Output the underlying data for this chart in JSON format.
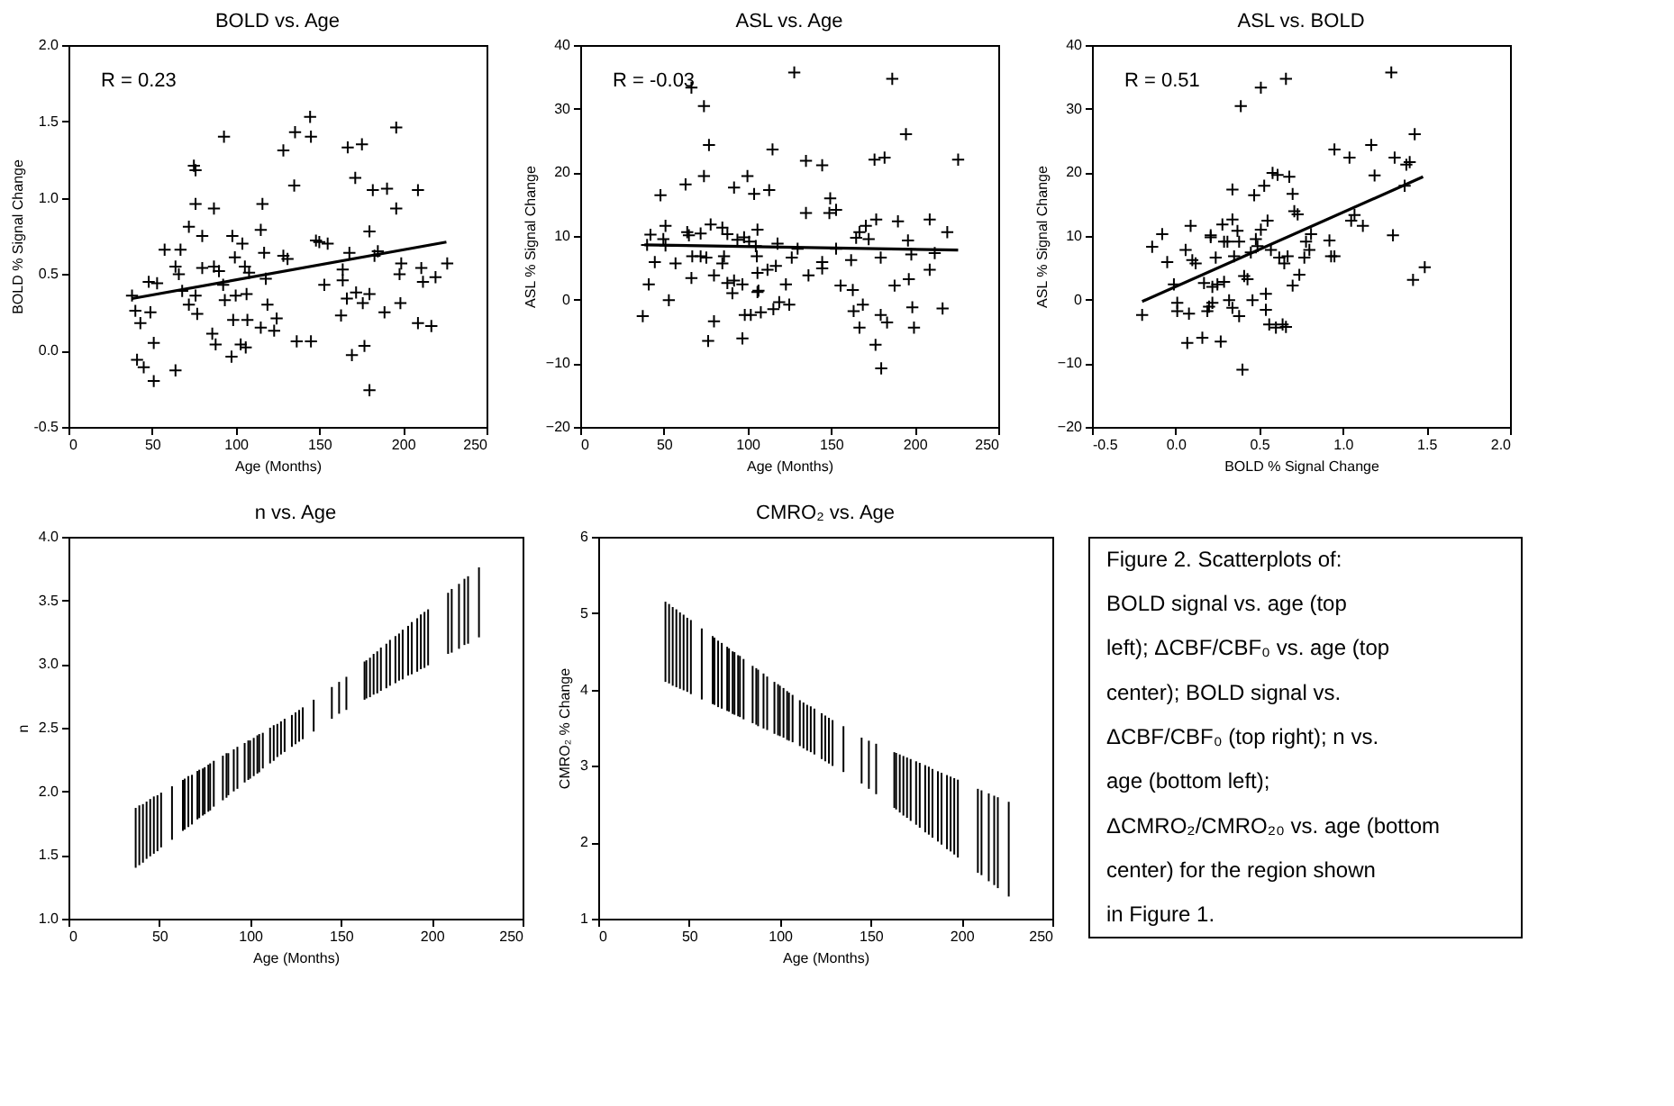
{
  "chart_data": [
    {
      "type": "scatter",
      "title": "BOLD vs. Age",
      "xlabel": "Age (Months)",
      "ylabel": "BOLD % Signal Change",
      "annotations": [
        "R = 0.23"
      ],
      "grid": false,
      "xlim": [
        0,
        250
      ],
      "xticks": [
        0,
        50,
        100,
        150,
        200,
        250
      ],
      "ylim": [
        -0.5,
        2.0
      ],
      "yticks": [
        {
          "value": -0.5,
          "label": "-0.5"
        },
        {
          "value": 0,
          "label": "0.0"
        },
        {
          "value": 0.5,
          "label": "0.5"
        },
        {
          "value": 1,
          "label": "1.0"
        },
        {
          "value": 1.5,
          "label": "1.5"
        },
        {
          "value": 2,
          "label": "2.0"
        }
      ],
      "series": [
        {
          "type": "scatter",
          "marker": "cross",
          "color": "#000000",
          "x": [
            38,
            40,
            41,
            43,
            45,
            48,
            49,
            51,
            51,
            53,
            57.5,
            64,
            64,
            66,
            67,
            68,
            72,
            72,
            75,
            76,
            76,
            76,
            77,
            80,
            80,
            86,
            87,
            87,
            88,
            90,
            93,
            92.5,
            93.5,
            98,
            97.5,
            98.5,
            99.5,
            100,
            103,
            104,
            105.5,
            106,
            106.5,
            107,
            108,
            115,
            116,
            117,
            118,
            119,
            115,
            123,
            124.5,
            128.5,
            128.5,
            131,
            135,
            135.5,
            136.5,
            144.5,
            145,
            145,
            148,
            150,
            153,
            155,
            163,
            164,
            164,
            166.5,
            167,
            168,
            169.5,
            171.5,
            172,
            175.5,
            176,
            177,
            180,
            180,
            180,
            182,
            183,
            185,
            189,
            190.5,
            196,
            196,
            198,
            198.5,
            199,
            209,
            209,
            211,
            212,
            217,
            219.5,
            226.5
          ],
          "values": [
            0.36,
            0.26,
            -0.06,
            0.18,
            -0.11,
            0.45,
            0.25,
            0.05,
            -0.2,
            0.44,
            0.66,
            0.55,
            -0.13,
            0.5,
            0.66,
            0.39,
            0.81,
            0.3,
            1.21,
            1.18,
            0.96,
            0.36,
            0.24,
            0.75,
            0.54,
            0.11,
            0.93,
            0.55,
            0.04,
            0.52,
            1.4,
            0.43,
            0.33,
            0.75,
            -0.04,
            0.2,
            0.61,
            0.36,
            0.04,
            0.7,
            0.55,
            0.02,
            0.37,
            0.2,
            0.51,
            0.79,
            0.96,
            0.64,
            0.47,
            0.3,
            0.15,
            0.13,
            0.21,
            1.31,
            0.62,
            0.6,
            1.08,
            1.43,
            0.06,
            1.53,
            1.4,
            0.06,
            0.72,
            0.71,
            0.43,
            0.7,
            0.23,
            0.53,
            0.46,
            0.34,
            1.33,
            0.64,
            -0.03,
            1.13,
            0.38,
            1.35,
            0.31,
            0.03,
            0.78,
            -0.26,
            0.37,
            1.05,
            0.62,
            0.65,
            0.25,
            1.06,
            0.93,
            1.46,
            0.5,
            0.31,
            0.57,
            1.05,
            0.18,
            0.54,
            0.45,
            0.16,
            0.48,
            0.57
          ]
        },
        {
          "type": "line",
          "line_style": "solid",
          "color": "#000000",
          "x": [
            38,
            226
          ],
          "values": [
            0.34,
            0.71
          ]
        }
      ]
    },
    {
      "type": "scatter",
      "title": "ASL vs. Age",
      "xlabel": "Age (Months)",
      "ylabel": "ASL % Signal Change",
      "annotations": [
        "R = -0.03"
      ],
      "grid": false,
      "xlim": [
        0,
        250
      ],
      "xticks": [
        0,
        50,
        100,
        150,
        200,
        250
      ],
      "ylim": [
        -20,
        40
      ],
      "yticks": [
        -20,
        -10,
        0,
        10,
        20,
        30,
        40
      ],
      "series": [
        {
          "type": "scatter",
          "marker": "cross",
          "color": "#000000",
          "x": [
            37.4,
            40,
            41,
            42,
            44.6,
            48,
            49.7,
            51,
            51,
            53,
            57,
            63,
            64,
            65,
            66.5,
            66.5,
            67,
            72,
            72,
            74,
            74,
            75.4,
            77,
            76.5,
            78,
            80,
            80,
            85,
            85,
            86,
            88,
            88,
            91,
            92,
            92,
            94,
            97,
            97,
            98,
            98.4,
            100,
            101,
            102,
            104,
            105,
            105.6,
            106,
            106,
            106,
            106.6,
            108,
            112,
            113,
            115,
            115.5,
            117,
            118,
            119,
            123,
            125,
            126.5,
            128,
            130,
            135,
            135,
            136.5,
            144.7,
            144.7,
            144.7,
            149.5,
            149,
            153,
            153,
            155.7,
            162,
            163,
            163.5,
            165,
            167,
            167,
            169,
            170.8,
            172.5,
            176,
            176.6,
            177,
            179.7,
            179.7,
            180,
            182,
            183.5,
            186.6,
            188,
            190,
            194.8,
            196,
            196.5,
            198,
            198.6,
            199.6,
            209,
            209,
            212,
            216.7,
            219.5,
            226
          ],
          "values": [
            -2.6,
            8.6,
            2.4,
            10.2,
            5.9,
            16.4,
            9.5,
            11.6,
            8.5,
            -0.1,
            5.7,
            18.1,
            10.6,
            10.1,
            3.4,
            33.3,
            6.8,
            10.4,
            6.8,
            30.4,
            19.4,
            6.6,
            24.3,
            -6.5,
            11.8,
            3.8,
            -3.4,
            11.3,
            5.7,
            6.8,
            10.3,
            2.6,
            1.0,
            17.6,
            3.0,
            9.4,
            2.4,
            -6.1,
            9.8,
            -2.4,
            19.4,
            9.1,
            -2.4,
            16.6,
            8.4,
            6.8,
            11.0,
            4.2,
            1.2,
            1.4,
            -2.0,
            4.7,
            17.2,
            23.6,
            -1.5,
            5.3,
            8.8,
            -0.4,
            2.4,
            -0.8,
            6.6,
            35.7,
            8.0,
            21.8,
            13.6,
            3.8,
            4.9,
            5.9,
            21.1,
            15.9,
            13.6,
            14.1,
            8.0,
            2.2,
            6.2,
            1.5,
            -1.8,
            9.7,
            10.6,
            -4.4,
            -0.8,
            11.6,
            9.5,
            22.0,
            -7.1,
            12.6,
            6.6,
            -2.4,
            -10.8,
            22.3,
            -3.6,
            34.7,
            2.2,
            12.3,
            26.0,
            9.3,
            3.2,
            7.1,
            -1.2,
            -4.4,
            12.6,
            4.7,
            7.3,
            -1.4,
            10.6,
            22
          ]
        },
        {
          "type": "line",
          "line_style": "solid",
          "color": "#000000",
          "x": [
            38.4,
            226
          ],
          "values": [
            8.6,
            7.8
          ]
        }
      ]
    },
    {
      "type": "scatter",
      "title": "ASL vs. BOLD",
      "xlabel": "BOLD % Signal Change",
      "ylabel": "ASL % Signal Change",
      "annotations": [
        "R = 0.51"
      ],
      "grid": false,
      "xlim": [
        -0.5,
        2.0
      ],
      "xticks": [
        {
          "value": -0.5,
          "label": "-0.5"
        },
        {
          "value": 0,
          "label": "0.0"
        },
        {
          "value": 0.5,
          "label": "0.5"
        },
        {
          "value": 1,
          "label": "1.0"
        },
        {
          "value": 1.5,
          "label": "1.5"
        },
        {
          "value": 2,
          "label": "2.0"
        }
      ],
      "ylim": [
        -20,
        40
      ],
      "yticks": [
        -20,
        -10,
        0,
        10,
        20,
        30,
        40
      ],
      "series": [
        {
          "type": "scatter",
          "marker": "cross",
          "color": "#000000",
          "x": [
            -0.2,
            -0.14,
            -0.08,
            -0.05,
            -0.01,
            0.01,
            0.01,
            0.06,
            0.07,
            0.08,
            0.09,
            0.1,
            0.12,
            0.16,
            0.17,
            0.19,
            0.2,
            0.21,
            0.21,
            0.22,
            0.22,
            0.24,
            0.25,
            0.27,
            0.28,
            0.29,
            0.29,
            0.31,
            0.32,
            0.34,
            0.34,
            0.34,
            0.35,
            0.37,
            0.38,
            0.38,
            0.39,
            0.4,
            0.41,
            0.43,
            0.45,
            0.47,
            0.46,
            0.48,
            0.49,
            0.51,
            0.51,
            0.53,
            0.54,
            0.54,
            0.55,
            0.56,
            0.57,
            0.58,
            0.6,
            0.61,
            0.62,
            0.64,
            0.65,
            0.66,
            0.66,
            0.67,
            0.68,
            0.7,
            0.7,
            0.71,
            0.73,
            0.74,
            0.77,
            0.78,
            0.8,
            0.81,
            0.92,
            0.93,
            0.95,
            0.95,
            1.04,
            1.05,
            1.07,
            1.12,
            1.17,
            1.19,
            1.3,
            1.29,
            1.31,
            1.37,
            1.38,
            1.4,
            1.42,
            1.43,
            1.49
          ],
          "values": [
            -2.4,
            8.3,
            10.3,
            5.9,
            2.4,
            -0.5,
            -1.8,
            7.8,
            -6.8,
            -2.2,
            11.6,
            6.2,
            5.7,
            -6.0,
            2.6,
            -1.8,
            -1.1,
            9.8,
            10.1,
            -0.5,
            2.0,
            6.6,
            2.4,
            -6.6,
            11.8,
            9.1,
            2.8,
            9.1,
            -0.1,
            17.3,
            12.6,
            -1.3,
            6.8,
            10.8,
            9.1,
            -2.6,
            30.4,
            -11.0,
            3.7,
            3.2,
            7.4,
            16.4,
            -0.1,
            9.5,
            8.4,
            33.3,
            11.0,
            17.9,
            0.9,
            -1.6,
            12.4,
            -3.9,
            7.8,
            19.9,
            -4.4,
            19.6,
            6.6,
            -3.9,
            5.7,
            -4.3,
            34.7,
            6.8,
            19.3,
            2.2,
            16.6,
            13.9,
            13.4,
            3.9,
            6.6,
            9.1,
            7.8,
            10.3,
            9.3,
            6.8,
            6.8,
            23.6,
            22.3,
            12.4,
            13.3,
            11.6,
            24.3,
            19.5,
            10.1,
            35.7,
            22.3,
            17.9,
            21.2,
            21.6,
            3.1,
            26.0,
            5.1
          ]
        },
        {
          "type": "line",
          "line_style": "solid",
          "color": "#000000",
          "x": [
            -0.2,
            1.48
          ],
          "values": [
            -0.3,
            19.3
          ]
        }
      ]
    },
    {
      "type": "bar",
      "title": "n vs. Age",
      "xlabel": "Age (Months)",
      "ylabel": "n",
      "grid": false,
      "color": "#000000",
      "xlim": [
        0,
        250
      ],
      "xticks": [
        0,
        50,
        100,
        150,
        200,
        250
      ],
      "ylim": [
        1.0,
        4.0
      ],
      "yticks": [
        {
          "value": 1,
          "label": "1.0"
        },
        {
          "value": 1.5,
          "label": "1.5"
        },
        {
          "value": 2,
          "label": "2.0"
        },
        {
          "value": 2.5,
          "label": "2.5"
        },
        {
          "value": 3,
          "label": "3.0"
        },
        {
          "value": 3.5,
          "label": "3.5"
        },
        {
          "value": 4,
          "label": "4.0"
        }
      ],
      "x": [
        37,
        39,
        41,
        43,
        45,
        47,
        49,
        51,
        57,
        63,
        64,
        66,
        68,
        71,
        72,
        74,
        75,
        77,
        78,
        80,
        85,
        87,
        88,
        91,
        93,
        97,
        99,
        100,
        102,
        104,
        105,
        107,
        111,
        113,
        115,
        117,
        119,
        123,
        125,
        127,
        129,
        135,
        145,
        149,
        153,
        163,
        164,
        166,
        168,
        170,
        172,
        175,
        177,
        180,
        182,
        184,
        187,
        189,
        192,
        194,
        196,
        198,
        209,
        211,
        215,
        218,
        220,
        226
      ],
      "base": [
        1.4,
        1.42,
        1.44,
        1.47,
        1.49,
        1.51,
        1.53,
        1.56,
        1.62,
        1.69,
        1.7,
        1.72,
        1.74,
        1.78,
        1.79,
        1.81,
        1.82,
        1.84,
        1.85,
        1.88,
        1.93,
        1.95,
        1.97,
        2.0,
        2.02,
        2.07,
        2.09,
        2.1,
        2.12,
        2.14,
        2.15,
        2.18,
        2.22,
        2.24,
        2.27,
        2.29,
        2.31,
        2.35,
        2.37,
        2.39,
        2.41,
        2.47,
        2.57,
        2.61,
        2.64,
        2.72,
        2.73,
        2.74,
        2.76,
        2.77,
        2.79,
        2.81,
        2.83,
        2.85,
        2.87,
        2.88,
        2.91,
        2.92,
        2.94,
        2.96,
        2.97,
        2.99,
        3.08,
        3.09,
        3.12,
        3.15,
        3.16,
        3.21
      ],
      "values": [
        0.47,
        0.47,
        0.46,
        0.45,
        0.45,
        0.45,
        0.44,
        0.43,
        0.42,
        0.4,
        0.4,
        0.4,
        0.39,
        0.38,
        0.38,
        0.37,
        0.37,
        0.37,
        0.37,
        0.36,
        0.35,
        0.35,
        0.33,
        0.33,
        0.33,
        0.31,
        0.31,
        0.3,
        0.3,
        0.3,
        0.3,
        0.28,
        0.28,
        0.28,
        0.26,
        0.26,
        0.26,
        0.25,
        0.25,
        0.25,
        0.25,
        0.25,
        0.25,
        0.25,
        0.26,
        0.3,
        0.3,
        0.31,
        0.32,
        0.33,
        0.34,
        0.35,
        0.36,
        0.37,
        0.37,
        0.39,
        0.39,
        0.41,
        0.42,
        0.43,
        0.44,
        0.44,
        0.48,
        0.5,
        0.51,
        0.52,
        0.53,
        0.55
      ]
    },
    {
      "type": "bar",
      "title": "CMRO₂ vs. Age",
      "xlabel": "Age (Months)",
      "ylabel": "CMRO₂ % Change",
      "grid": false,
      "color": "#000000",
      "xlim": [
        0,
        250
      ],
      "xticks": [
        0,
        50,
        100,
        150,
        200,
        250
      ],
      "ylim": [
        1,
        6
      ],
      "yticks": [
        1,
        2,
        3,
        4,
        5,
        6
      ],
      "x": [
        37,
        39,
        41,
        43,
        45,
        47,
        49,
        51,
        57,
        63,
        64,
        66,
        68,
        71,
        72,
        74,
        75,
        77,
        78,
        80,
        85,
        87,
        88,
        91,
        93,
        97,
        99,
        100,
        102,
        104,
        105,
        107,
        111,
        113,
        115,
        117,
        119,
        123,
        125,
        127,
        129,
        135,
        145,
        149,
        153,
        163,
        164,
        166,
        168,
        170,
        172,
        175,
        177,
        180,
        182,
        184,
        187,
        189,
        192,
        194,
        196,
        198,
        209,
        211,
        215,
        218,
        220,
        226
      ],
      "base": [
        4.1,
        4.08,
        4.05,
        4.03,
        4.01,
        3.99,
        3.97,
        3.94,
        3.87,
        3.81,
        3.8,
        3.77,
        3.75,
        3.72,
        3.71,
        3.68,
        3.67,
        3.65,
        3.64,
        3.61,
        3.56,
        3.54,
        3.52,
        3.49,
        3.47,
        3.42,
        3.4,
        3.39,
        3.37,
        3.34,
        3.33,
        3.31,
        3.26,
        3.23,
        3.2,
        3.18,
        3.15,
        3.09,
        3.06,
        3.03,
        3.0,
        2.92,
        2.77,
        2.7,
        2.63,
        2.45,
        2.43,
        2.39,
        2.35,
        2.32,
        2.28,
        2.23,
        2.19,
        2.13,
        2.1,
        2.06,
        2.01,
        1.97,
        1.91,
        1.88,
        1.84,
        1.8,
        1.6,
        1.57,
        1.49,
        1.44,
        1.4,
        1.29
      ],
      "values": [
        1.05,
        1.04,
        1.03,
        1.02,
        1.0,
        0.99,
        0.97,
        0.97,
        0.93,
        0.89,
        0.88,
        0.87,
        0.86,
        0.84,
        0.83,
        0.82,
        0.82,
        0.8,
        0.8,
        0.79,
        0.75,
        0.74,
        0.74,
        0.72,
        0.7,
        0.68,
        0.67,
        0.66,
        0.65,
        0.64,
        0.63,
        0.62,
        0.6,
        0.6,
        0.6,
        0.6,
        0.6,
        0.6,
        0.6,
        0.6,
        0.6,
        0.6,
        0.6,
        0.63,
        0.66,
        0.73,
        0.74,
        0.76,
        0.78,
        0.79,
        0.81,
        0.83,
        0.85,
        0.88,
        0.89,
        0.9,
        0.92,
        0.94,
        0.97,
        0.98,
        1.0,
        1.02,
        1.1,
        1.11,
        1.15,
        1.17,
        1.19,
        1.24
      ]
    },
    {
      "type": "other",
      "annotations": [
        "Figure 2. Scatterplots of: BOLD signal vs. age (top left); ΔCBF/CBF₀ vs. age (top center); BOLD signal vs. ΔCBF/CBF₀ (top right); n vs. age (bottom left); ΔCMRO₂/CMRO₂₀ vs. age (bottom center) for the region shown in Figure 1."
      ]
    }
  ]
}
